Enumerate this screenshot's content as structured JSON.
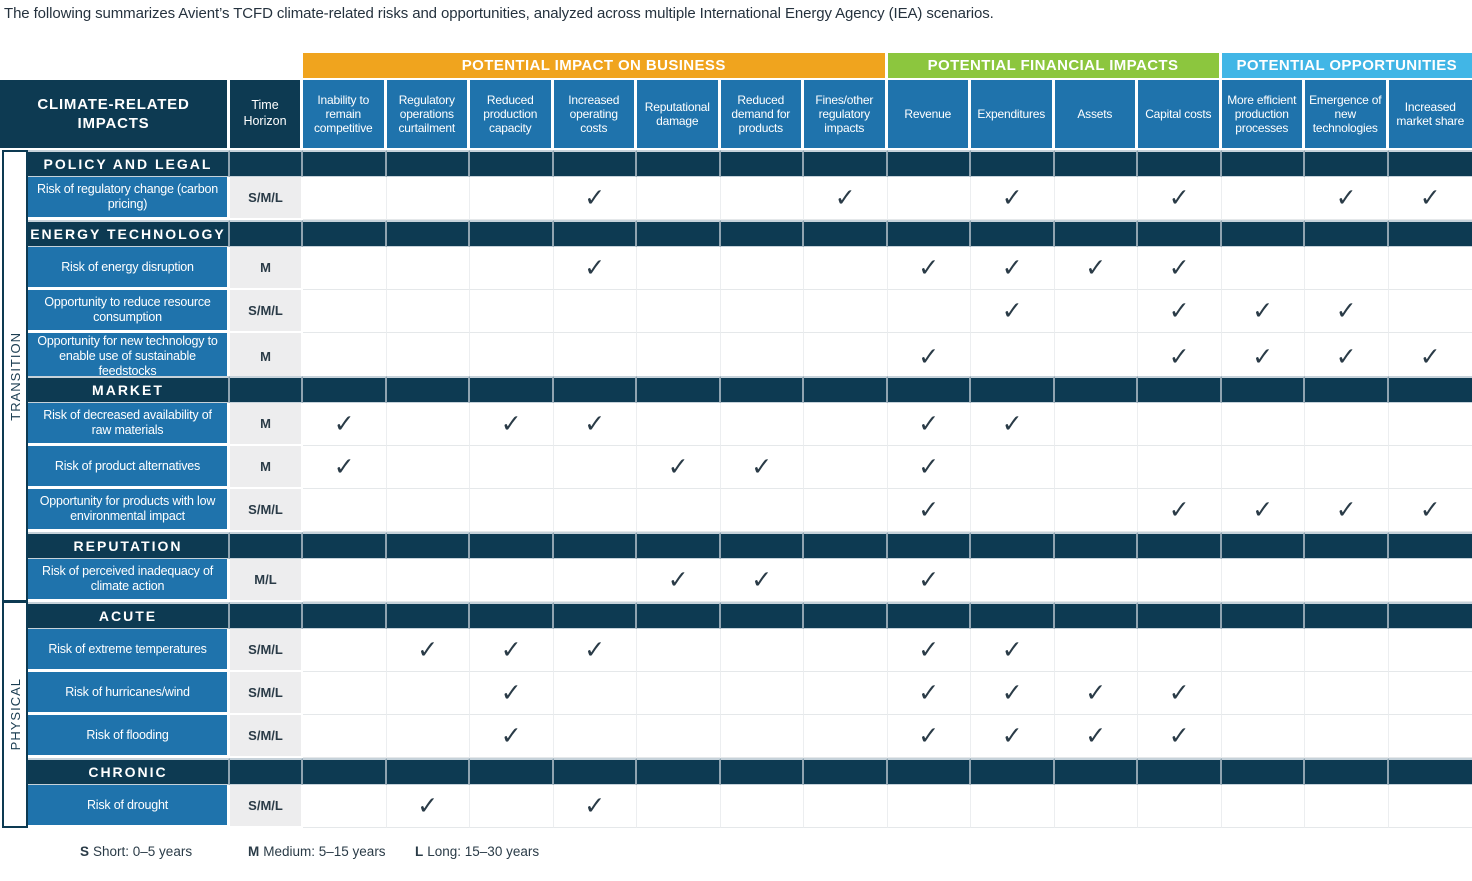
{
  "title": "The following summarizes Avient’s TCFD climate-related risks and opportunities, analyzed across multiple International Energy Agency (IEA) scenarios.",
  "colors": {
    "navy": "#0D3A52",
    "blue": "#1F73AC",
    "orange": "#F0A41E",
    "green": "#8CC63E",
    "cyan": "#41B6E6",
    "cell_gray": "#EDEDEE",
    "ink": "#2A3B47"
  },
  "check_glyph": "✓",
  "groups": [
    {
      "label": "POTENTIAL IMPACT ON BUSINESS",
      "columns": 7
    },
    {
      "label": "POTENTIAL FINANCIAL IMPACTS",
      "columns": 4
    },
    {
      "label": "POTENTIAL OPPORTUNITIES",
      "columns": 3
    }
  ],
  "header": {
    "impacts_label": "CLIMATE-RELATED IMPACTS",
    "time_horizon_label": "Time Horizon",
    "columns": [
      "Inability to remain competitive",
      "Regulatory operations curtailment",
      "Reduced production capacity",
      "Increased operating costs",
      "Reputational damage",
      "Reduced demand for products",
      "Fines/other regulatory impacts",
      "Revenue",
      "Expenditures",
      "Assets",
      "Capital costs",
      "More efficient production processes",
      "Emergence of new technologies",
      "Increased market share"
    ]
  },
  "side_labels": [
    {
      "label": "TRANSITION"
    },
    {
      "label": "PHYSICAL"
    }
  ],
  "rows": [
    {
      "type": "section",
      "label": "POLICY AND LEGAL"
    },
    {
      "type": "data",
      "label": "Risk of regulatory change (carbon pricing)",
      "time": "S/M/L",
      "checks": [
        0,
        0,
        0,
        1,
        0,
        0,
        1,
        0,
        1,
        0,
        1,
        0,
        1,
        1
      ]
    },
    {
      "type": "section",
      "label": "ENERGY TECHNOLOGY"
    },
    {
      "type": "data",
      "label": "Risk of energy disruption",
      "time": "M",
      "checks": [
        0,
        0,
        0,
        1,
        0,
        0,
        0,
        1,
        1,
        1,
        1,
        0,
        0,
        0
      ]
    },
    {
      "type": "data",
      "label": "Opportunity to reduce resource consumption",
      "time": "S/M/L",
      "checks": [
        0,
        0,
        0,
        0,
        0,
        0,
        0,
        0,
        1,
        0,
        1,
        1,
        1,
        0
      ]
    },
    {
      "type": "data",
      "label": "Opportunity for new technology to enable use of sustainable feedstocks",
      "time": "M",
      "checks": [
        0,
        0,
        0,
        0,
        0,
        0,
        0,
        1,
        0,
        0,
        1,
        1,
        1,
        1
      ]
    },
    {
      "type": "section",
      "label": "MARKET"
    },
    {
      "type": "data",
      "label": "Risk of decreased availability of raw materials",
      "time": "M",
      "checks": [
        1,
        0,
        1,
        1,
        0,
        0,
        0,
        1,
        1,
        0,
        0,
        0,
        0,
        0
      ]
    },
    {
      "type": "data",
      "label": "Risk of product alternatives",
      "time": "M",
      "checks": [
        1,
        0,
        0,
        0,
        1,
        1,
        0,
        1,
        0,
        0,
        0,
        0,
        0,
        0
      ]
    },
    {
      "type": "data",
      "label": "Opportunity for products with low environmental impact",
      "time": "S/M/L",
      "checks": [
        0,
        0,
        0,
        0,
        0,
        0,
        0,
        1,
        0,
        0,
        1,
        1,
        1,
        1
      ]
    },
    {
      "type": "section",
      "label": "REPUTATION"
    },
    {
      "type": "data",
      "label": "Risk of perceived inadequacy of climate action",
      "time": "M/L",
      "checks": [
        0,
        0,
        0,
        0,
        1,
        1,
        0,
        1,
        0,
        0,
        0,
        0,
        0,
        0
      ]
    },
    {
      "type": "section",
      "label": "ACUTE"
    },
    {
      "type": "data",
      "label": "Risk of extreme temperatures",
      "time": "S/M/L",
      "checks": [
        0,
        1,
        1,
        1,
        0,
        0,
        0,
        1,
        1,
        0,
        0,
        0,
        0,
        0
      ]
    },
    {
      "type": "data",
      "label": "Risk of hurricanes/wind",
      "time": "S/M/L",
      "checks": [
        0,
        0,
        1,
        0,
        0,
        0,
        0,
        1,
        1,
        1,
        1,
        0,
        0,
        0
      ]
    },
    {
      "type": "data",
      "label": "Risk of flooding",
      "time": "S/M/L",
      "checks": [
        0,
        0,
        1,
        0,
        0,
        0,
        0,
        1,
        1,
        1,
        1,
        0,
        0,
        0
      ]
    },
    {
      "type": "section",
      "label": "CHRONIC"
    },
    {
      "type": "data",
      "label": "Risk of drought",
      "time": "S/M/L",
      "checks": [
        0,
        1,
        0,
        1,
        0,
        0,
        0,
        0,
        0,
        0,
        0,
        0,
        0,
        0
      ]
    }
  ],
  "legend": [
    {
      "key": "S",
      "text": "Short: 0–5 years"
    },
    {
      "key": "M",
      "text": "Medium: 5–15 years"
    },
    {
      "key": "L",
      "text": "Long: 15–30 years"
    }
  ]
}
